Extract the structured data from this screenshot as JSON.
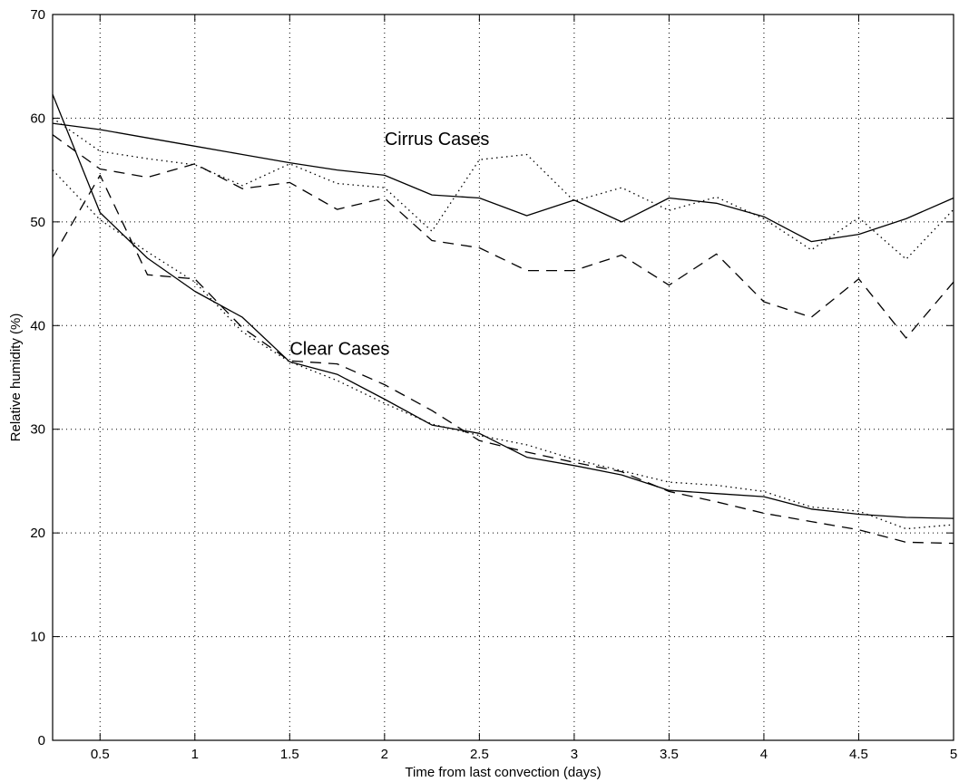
{
  "chart_data": {
    "type": "line",
    "title": "",
    "xlabel": "Time from last convection (days)",
    "ylabel": "Relative humidity (%)",
    "xlim": [
      0.25,
      5
    ],
    "ylim": [
      0,
      70
    ],
    "x_ticks": [
      "0.5",
      "1",
      "1.5",
      "2",
      "2.5",
      "3",
      "3.5",
      "4",
      "4.5",
      "5"
    ],
    "y_ticks": [
      "0",
      "10",
      "20",
      "30",
      "40",
      "50",
      "60",
      "70"
    ],
    "grid": true,
    "x": [
      0.25,
      0.5,
      0.75,
      1.0,
      1.25,
      1.5,
      1.75,
      2.0,
      2.25,
      2.5,
      2.75,
      3.0,
      3.25,
      3.5,
      3.75,
      4.0,
      4.25,
      4.5,
      4.75,
      5.0
    ],
    "annotations": [
      {
        "text": "Cirrus Cases",
        "x": 2.0,
        "y": 57.4
      },
      {
        "text": "Clear Cases",
        "x": 1.5,
        "y": 37.2
      }
    ],
    "groups": [
      {
        "label": "Cirrus Cases",
        "series": [
          {
            "style": "solid",
            "values": [
              59.5,
              58.9,
              58.1,
              57.3,
              56.5,
              55.7,
              55.0,
              54.5,
              52.6,
              52.3,
              50.6,
              52.1,
              50.0,
              52.3,
              51.8,
              50.5,
              48.1,
              48.8,
              50.3,
              52.3
            ]
          },
          {
            "style": "dashed",
            "values": [
              58.4,
              55.1,
              54.3,
              55.6,
              53.2,
              53.8,
              51.2,
              52.3,
              48.2,
              47.5,
              45.3,
              45.3,
              46.8,
              43.9,
              46.9,
              42.3,
              40.8,
              44.5,
              38.8,
              44.2
            ]
          },
          {
            "style": "dotted",
            "values": [
              60.0,
              56.8,
              56.1,
              55.5,
              53.5,
              55.6,
              53.7,
              53.3,
              49.1,
              56.0,
              56.5,
              52.0,
              53.3,
              51.1,
              52.4,
              50.3,
              47.3,
              50.4,
              46.4,
              51.2
            ]
          }
        ]
      },
      {
        "label": "Clear Cases",
        "series": [
          {
            "style": "solid",
            "values": [
              62.3,
              50.9,
              46.5,
              43.3,
              40.8,
              36.5,
              35.3,
              32.9,
              30.4,
              29.6,
              27.3,
              26.5,
              25.6,
              24.1,
              23.8,
              23.5,
              22.3,
              21.8,
              21.5,
              21.4
            ]
          },
          {
            "style": "dashed",
            "values": [
              46.6,
              54.5,
              44.9,
              44.5,
              39.8,
              36.6,
              36.3,
              34.3,
              31.8,
              28.9,
              27.8,
              26.8,
              25.9,
              24.0,
              23.0,
              21.9,
              21.1,
              20.3,
              19.1,
              19.0
            ]
          },
          {
            "style": "dotted",
            "values": [
              55.0,
              50.2,
              47.1,
              44.2,
              39.4,
              36.5,
              34.7,
              32.5,
              30.5,
              29.4,
              28.5,
              27.1,
              26.0,
              24.9,
              24.6,
              24.0,
              22.5,
              22.1,
              20.4,
              20.8
            ]
          }
        ]
      }
    ]
  }
}
